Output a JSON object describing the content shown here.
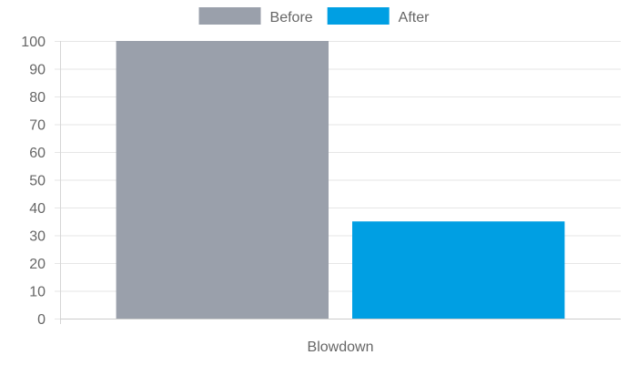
{
  "chart_data": {
    "type": "bar",
    "categories": [
      "Blowdown"
    ],
    "series": [
      {
        "name": "Before",
        "values": [
          100
        ],
        "color": "#9aa0ab"
      },
      {
        "name": "After",
        "values": [
          35
        ],
        "color": "#009fe3"
      }
    ],
    "ylim": [
      0,
      100
    ],
    "yticks": [
      0,
      10,
      20,
      30,
      40,
      50,
      60,
      70,
      80,
      90,
      100
    ],
    "grid": true,
    "legend_position": "top-center"
  }
}
